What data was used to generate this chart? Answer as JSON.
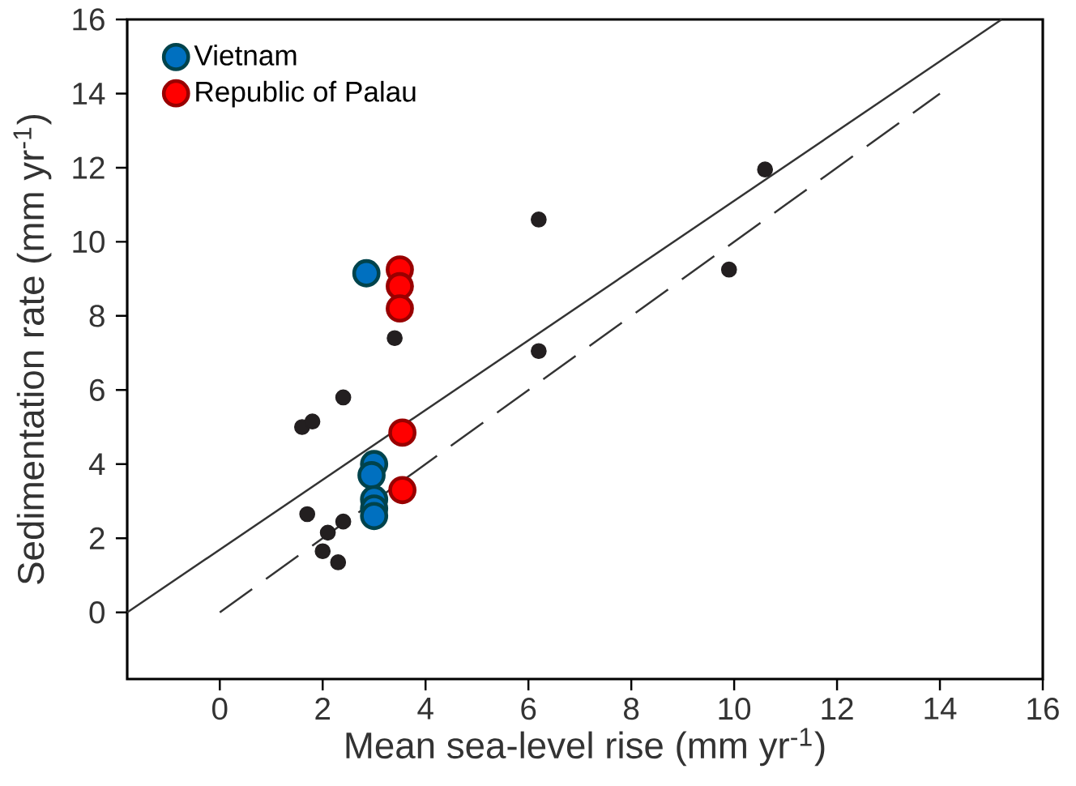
{
  "chart_data": {
    "type": "scatter",
    "xlabel": "Mean sea-level rise (mm yr$^{-1}$)",
    "ylabel": "Sedimentation rate (mm yr$^{-1}$)",
    "xlim": [
      -1.8,
      16
    ],
    "ylim": [
      -1.8,
      16
    ],
    "xticks": [
      0,
      2,
      4,
      6,
      8,
      10,
      12,
      14,
      16
    ],
    "yticks": [
      0,
      2,
      4,
      6,
      8,
      10,
      12,
      14,
      16
    ],
    "grid": false,
    "legend": "top left",
    "series": [
      {
        "type": "line",
        "color": "#333333",
        "line_style": "solid",
        "x": [
          -1.8,
          15.2
        ],
        "values": [
          0,
          16
        ]
      },
      {
        "type": "line",
        "color": "#333333",
        "line_style": "dashed",
        "x": [
          0,
          14
        ],
        "values": [
          0,
          14
        ]
      },
      {
        "color": "#231f20",
        "marker": "circle",
        "x": [
          1.6,
          1.8,
          2.4,
          3.4,
          1.7,
          2.1,
          2.0,
          2.4,
          2.3,
          6.2,
          6.2,
          10.6,
          9.9
        ],
        "values": [
          5.0,
          5.15,
          5.8,
          7.4,
          2.65,
          2.15,
          1.65,
          2.45,
          1.35,
          10.6,
          7.05,
          11.95,
          9.25
        ]
      },
      {
        "name": "Vietnam",
        "color": "#0070c0",
        "marker": "circle",
        "x": [
          2.85,
          3.0,
          2.95,
          3.0,
          3.0,
          3.0
        ],
        "values": [
          9.15,
          4.0,
          3.7,
          3.05,
          2.8,
          2.6
        ]
      },
      {
        "name": "Republic of Palau",
        "color": "#ff0000",
        "marker": "circle",
        "x": [
          3.5,
          3.5,
          3.5,
          3.55,
          3.55
        ],
        "values": [
          9.25,
          8.8,
          8.2,
          4.85,
          3.3
        ]
      }
    ]
  }
}
